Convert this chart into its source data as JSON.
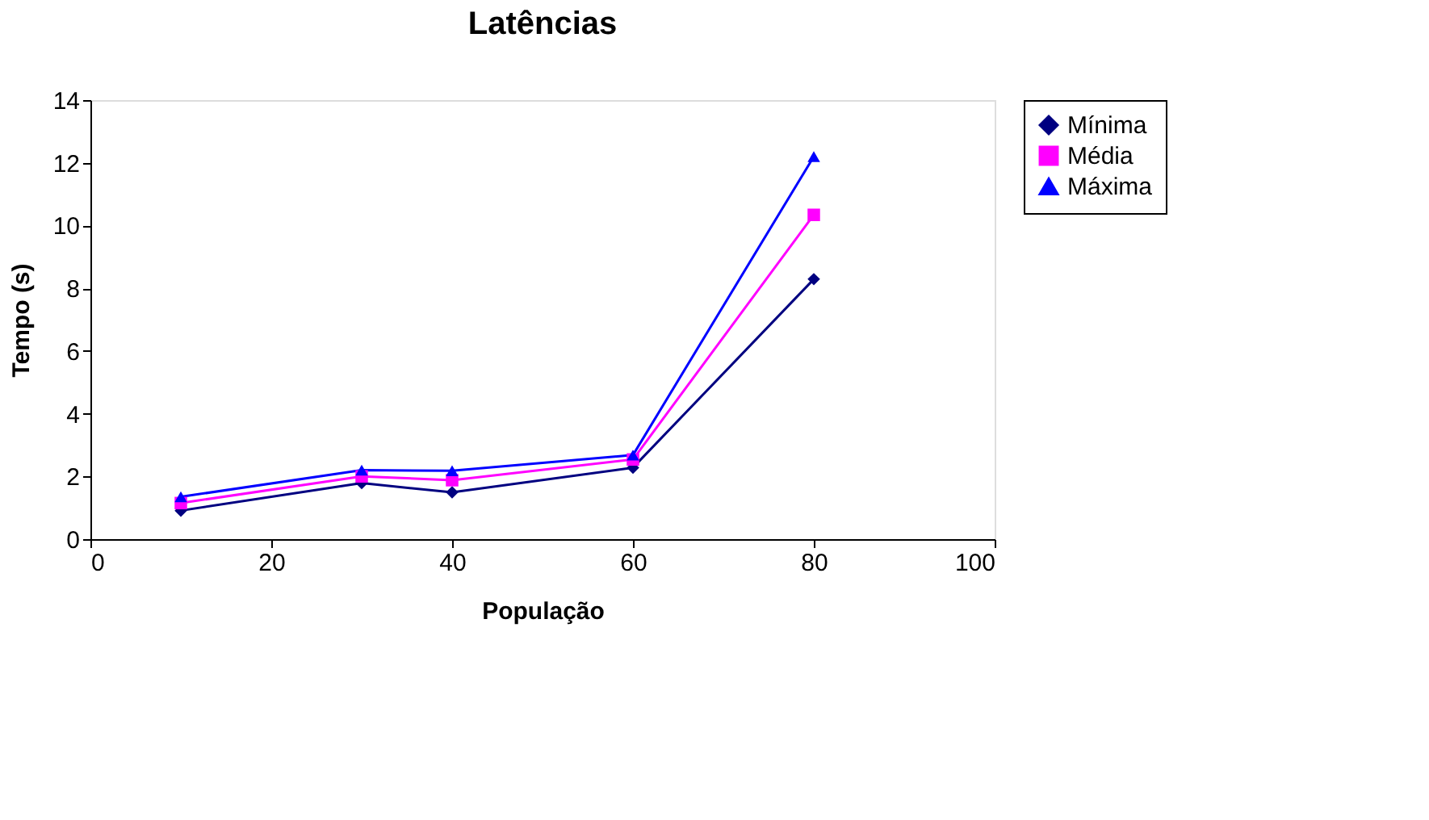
{
  "chart_data": {
    "type": "line",
    "title": "Latências",
    "xlabel": "População",
    "ylabel": "Tempo (s)",
    "x": [
      10,
      30,
      40,
      60,
      80
    ],
    "series": [
      {
        "name": "Mínima",
        "color": "#000080",
        "marker": "diamond",
        "values": [
          0.91,
          1.79,
          1.49,
          2.28,
          8.29
        ]
      },
      {
        "name": "Média",
        "color": "#ff00ff",
        "marker": "square",
        "values": [
          1.15,
          2.0,
          1.88,
          2.54,
          10.34
        ]
      },
      {
        "name": "Máxima",
        "color": "#0000ff",
        "marker": "triangle",
        "values": [
          1.35,
          2.2,
          2.18,
          2.68,
          12.2
        ]
      }
    ],
    "xlim": [
      0,
      100
    ],
    "xticks": [
      0,
      20,
      40,
      60,
      80,
      100
    ],
    "ylim": [
      0,
      14
    ],
    "yticks": [
      0,
      2,
      4,
      6,
      8,
      10,
      12,
      14
    ],
    "grid": false,
    "legend": "right",
    "line_style": "solid"
  }
}
